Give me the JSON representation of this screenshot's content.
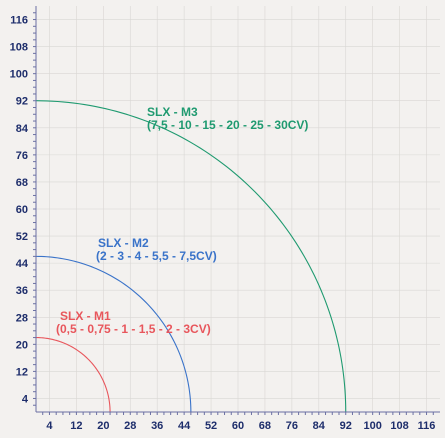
{
  "chart_data": {
    "type": "line",
    "title": "",
    "xlabel": "",
    "ylabel": "",
    "xlim": [
      0,
      120
    ],
    "ylim": [
      0,
      120
    ],
    "grid": true,
    "x_ticks": [
      4,
      12,
      20,
      28,
      36,
      44,
      52,
      60,
      68,
      76,
      84,
      92,
      100,
      108,
      116
    ],
    "y_ticks": [
      4,
      12,
      20,
      28,
      36,
      44,
      52,
      60,
      68,
      76,
      84,
      92,
      100,
      108,
      116
    ],
    "series": [
      {
        "name": "SLX - M1",
        "detail": "(0,5 - 0,75 - 1 - 1,5 - 2 - 3CV)",
        "color": "#e8565c",
        "radius": 22
      },
      {
        "name": "SLX - M2",
        "detail": "(2 - 3 - 4 - 5,5 - 7,5CV)",
        "color": "#3a73c9",
        "radius": 46
      },
      {
        "name": "SLX - M3",
        "detail": "(7,5 - 10 - 15 - 20 - 25 - 30CV)",
        "color": "#1f9a70",
        "radius": 92
      }
    ]
  }
}
